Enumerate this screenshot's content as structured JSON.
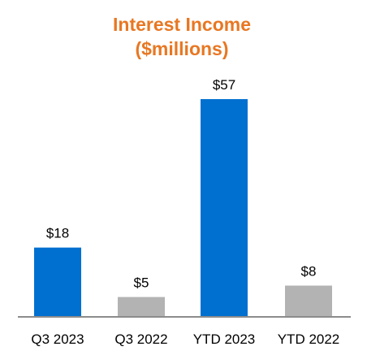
{
  "chart_data": {
    "type": "bar",
    "title": "Interest Income",
    "subtitle": "($millions)",
    "categories": [
      "Q3 2023",
      "Q3 2022",
      "YTD 2023",
      "YTD 2022"
    ],
    "values": [
      18,
      5,
      57,
      8
    ],
    "data_labels": [
      "$18",
      "$5",
      "$57",
      "$8"
    ],
    "bar_colors": [
      "#0070d0",
      "#b3b3b3",
      "#0070d0",
      "#b3b3b3"
    ],
    "title_color": "#e87722",
    "axis_color": "#8c8c8c",
    "xlabel": "",
    "ylabel": "",
    "ylim": [
      0,
      57
    ],
    "grid": false,
    "legend": "none"
  }
}
